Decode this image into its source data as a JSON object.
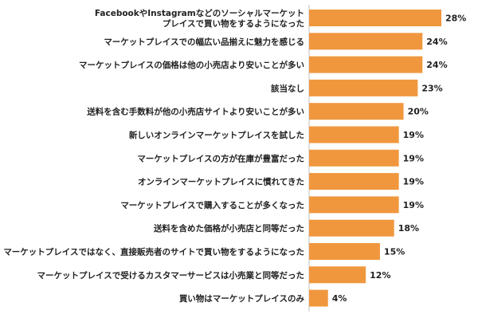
{
  "chart_data": {
    "type": "bar",
    "orientation": "horizontal",
    "title": "",
    "xlabel": "",
    "ylabel": "",
    "xlim": [
      0,
      28
    ],
    "grid": false,
    "legend": "none",
    "bar_color": "#F0973E",
    "categories": [
      [
        "FacebookやInstagramなどのソーシャルマーケット",
        "プレイスで買い物をするようになった"
      ],
      [
        "マーケットプレイスでの幅広い品揃えに魅力を感じる"
      ],
      [
        "マーケットプレイスの価格は他の小売店より安いことが多い"
      ],
      [
        "該当なし"
      ],
      [
        "送料を含む手数料が他の小売店サイトより安いことが多い"
      ],
      [
        "新しいオンラインマーケットプレイスを試した"
      ],
      [
        "マーケットプレイスの方が在庫が豊富だった"
      ],
      [
        "オンラインマーケットプレイスに慣れてきた"
      ],
      [
        "マーケットプレイスで購入することが多くなった"
      ],
      [
        "送料を含めた価格が小売店と同等だった"
      ],
      [
        "マーケットプレイスではなく、直接販売者のサイトで買い物をするようになった"
      ],
      [
        "マーケットプレイスで受けるカスタマーサービスは小売業と同等だった"
      ],
      [
        "買い物はマーケットプレイスのみ"
      ]
    ],
    "values": [
      28,
      24,
      24,
      23,
      20,
      19,
      19,
      19,
      19,
      18,
      15,
      12,
      4
    ],
    "value_labels": [
      "28%",
      "24%",
      "24%",
      "23%",
      "20%",
      "19%",
      "19%",
      "19%",
      "19%",
      "18%",
      "15%",
      "12%",
      "4%"
    ]
  }
}
